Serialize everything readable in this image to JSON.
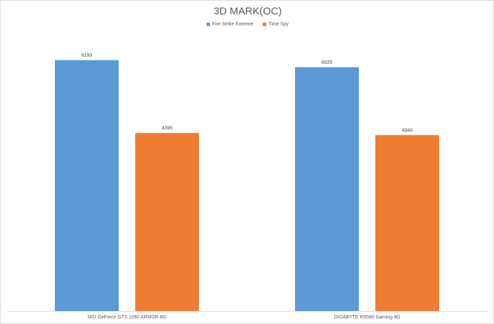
{
  "chart_data": {
    "type": "bar",
    "title": "3D MARK(OC)",
    "categories": [
      "MSI GeForce GTX 1060 ARMOR 6G",
      "GIGABYTE RX580 Gaming 8G"
    ],
    "series": [
      {
        "name": "Fire Strike Extreme",
        "values": [
          6193,
          6020
        ],
        "color": "#5b9bd5"
      },
      {
        "name": "Time Spy",
        "values": [
          4395,
          4343
        ],
        "color": "#ed7d31"
      }
    ],
    "ylim": [
      0,
      7000
    ],
    "grid": false,
    "legend": "top",
    "data_labels": true
  }
}
